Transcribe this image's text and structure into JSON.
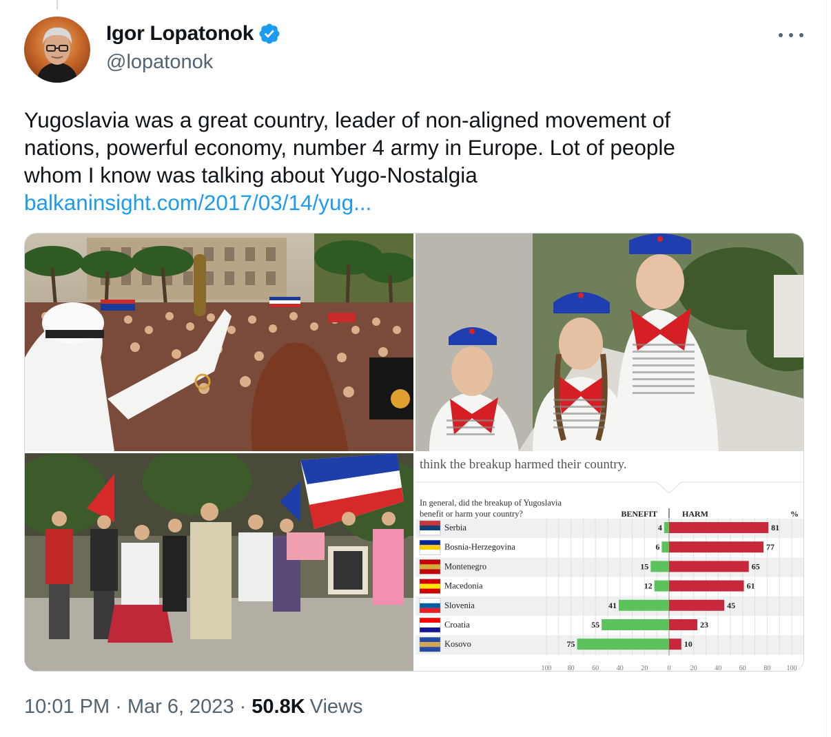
{
  "author": {
    "name": "Igor Lopatonok",
    "handle": "@lopatonok",
    "verified": true
  },
  "tweet": {
    "lines": [
      "Yugoslavia was a great country, leader of non-aligned movement of",
      "nations, powerful economy, number 4 army in Europe. Lot of people",
      "whom I know was talking about Yugo-Nostalgia"
    ],
    "link": "balkaninsight.com/2017/03/14/yug..."
  },
  "meta": {
    "time": "10:01 PM",
    "date": "Mar 6, 2023",
    "views_count": "50.8K",
    "views_label": "Views"
  },
  "icons": {
    "verified": "verified-badge-icon",
    "more": "more-options-icon"
  },
  "colors": {
    "link": "#1d9bf0",
    "verified": "#1d9bf0",
    "benefit": "#5cc35c",
    "harm": "#c8283c"
  },
  "chart_data": {
    "type": "bar",
    "caption": "think the breakup harmed their country.",
    "question": [
      "In general, did the breakup of Yugoslavia",
      "benefit or harm your country?"
    ],
    "legend": {
      "benefit": "BENEFIT",
      "harm": "HARM",
      "unit": "%"
    },
    "categories": [
      "Serbia",
      "Bosnia-Herzegovina",
      "Montenegro",
      "Macedonia",
      "Slovenia",
      "Croatia",
      "Kosovo"
    ],
    "series": [
      {
        "name": "BENEFIT",
        "values": [
          4,
          6,
          15,
          12,
          41,
          55,
          75
        ]
      },
      {
        "name": "HARM",
        "values": [
          81,
          77,
          65,
          61,
          45,
          23,
          10
        ]
      }
    ],
    "x_ticks": [
      "100",
      "80",
      "60",
      "40",
      "20",
      "0",
      "20",
      "40",
      "60",
      "80",
      "100"
    ],
    "xlim": [
      -100,
      100
    ]
  }
}
